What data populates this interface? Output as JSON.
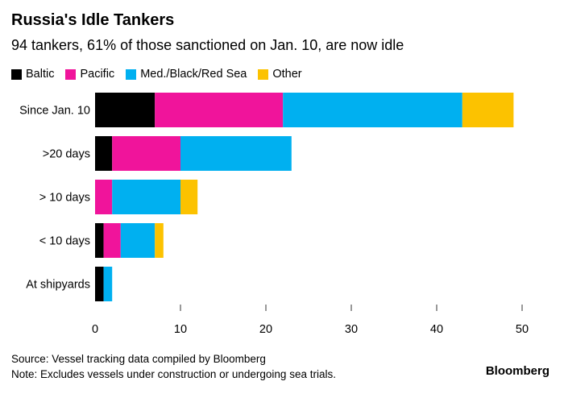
{
  "chart_data": {
    "type": "bar",
    "orientation": "horizontal",
    "stacked": true,
    "title": "Russia's Idle Tankers",
    "subtitle": "94 tankers, 61% of those sanctioned on Jan. 10, are now idle",
    "categories": [
      "Since Jan. 10",
      ">20 days",
      "> 10 days",
      "< 10 days",
      "At shipyards"
    ],
    "series": [
      {
        "name": "Baltic",
        "color": "#000000",
        "values": [
          7,
          2,
          0,
          1,
          1
        ]
      },
      {
        "name": "Pacific",
        "color": "#f0149b",
        "values": [
          15,
          8,
          2,
          2,
          0
        ]
      },
      {
        "name": "Med./Black/Red Sea",
        "color": "#00b0f0",
        "values": [
          21,
          13,
          8,
          4,
          1
        ]
      },
      {
        "name": "Other",
        "color": "#fcc200",
        "values": [
          6,
          0,
          2,
          1,
          0
        ]
      }
    ],
    "xlim": [
      0,
      50
    ],
    "xticks": [
      "0",
      "10",
      "20",
      "30",
      "40",
      "50"
    ],
    "xlabel": "",
    "ylabel": "",
    "legend_position": "top-left"
  },
  "footer": {
    "source": "Source: Vessel tracking data compiled by Bloomberg",
    "note": "Note: Excludes vessels under construction or undergoing sea trials.",
    "brand": "Bloomberg"
  }
}
